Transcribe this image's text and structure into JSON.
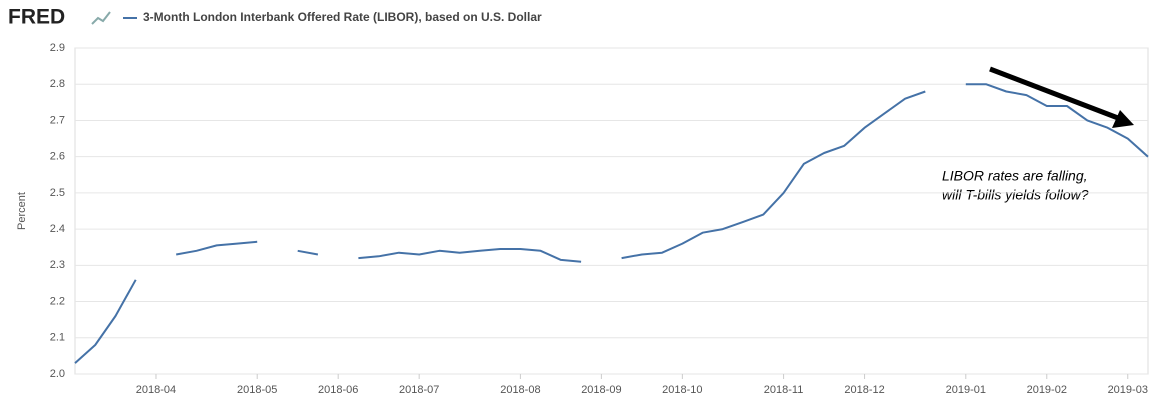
{
  "chart_data": {
    "type": "line",
    "source_logo": "FRED",
    "y_label": "Percent",
    "categories": [
      null,
      null,
      null,
      null,
      "2018-04",
      null,
      null,
      null,
      null,
      "2018-05",
      null,
      null,
      null,
      "2018-06",
      null,
      null,
      null,
      "2018-07",
      null,
      null,
      null,
      null,
      "2018-08",
      null,
      null,
      null,
      "2018-09",
      null,
      null,
      null,
      "2018-10",
      null,
      null,
      null,
      null,
      "2018-11",
      null,
      null,
      null,
      "2018-12",
      null,
      null,
      null,
      null,
      "2019-01",
      null,
      null,
      null,
      "2019-02",
      null,
      null,
      null,
      "2019-03",
      null
    ],
    "series": [
      {
        "name": "3-Month London Interbank Offered Rate (LIBOR), based on U.S. Dollar",
        "color": "#4572a7",
        "values": [
          2.03,
          2.08,
          2.16,
          2.26,
          null,
          2.33,
          2.34,
          2.355,
          2.36,
          2.365,
          null,
          2.34,
          2.33,
          null,
          2.32,
          2.325,
          2.335,
          2.33,
          2.34,
          2.335,
          2.34,
          2.345,
          2.345,
          2.34,
          2.315,
          2.31,
          null,
          2.32,
          2.33,
          2.335,
          2.36,
          2.39,
          2.4,
          2.42,
          2.44,
          2.5,
          2.58,
          2.61,
          2.63,
          2.68,
          2.72,
          2.76,
          2.78,
          null,
          2.8,
          2.8,
          2.78,
          2.77,
          2.74,
          2.74,
          2.7,
          2.68,
          2.65,
          2.6
        ]
      }
    ],
    "ylim": [
      2.0,
      2.9
    ],
    "yticks": [
      {
        "value": 2.0,
        "label": "2.0"
      },
      2.1,
      2.2,
      2.3,
      2.4,
      2.5,
      2.6,
      2.7,
      2.8,
      2.9
    ],
    "grid": true,
    "annotations": [
      "LIBOR rates are falling,",
      "will T-bills yields follow?"
    ]
  }
}
